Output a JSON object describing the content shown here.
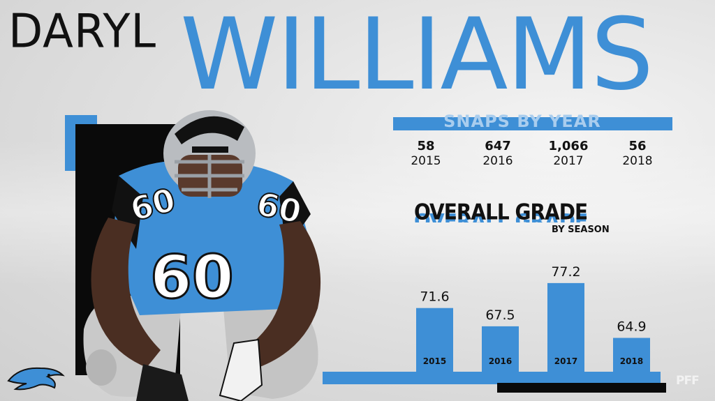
{
  "player": {
    "first_name": "DARYL",
    "last_name": "WILLIAMS",
    "jersey_number": "60"
  },
  "snaps": {
    "title": "SNAPS BY YEAR",
    "entries": [
      {
        "value": "58",
        "year": "2015"
      },
      {
        "value": "647",
        "year": "2016"
      },
      {
        "value": "1,066",
        "year": "2017"
      },
      {
        "value": "56",
        "year": "2018"
      }
    ]
  },
  "grade": {
    "title": "OVERALL GRADE",
    "subtitle": "BY SEASON"
  },
  "chart_data": {
    "type": "bar",
    "title": "OVERALL GRADE",
    "subtitle": "BY SEASON",
    "categories": [
      "2015",
      "2016",
      "2017",
      "2018"
    ],
    "values": [
      71.6,
      67.5,
      77.2,
      64.9
    ],
    "value_labels": [
      "71.6",
      "67.5",
      "77.2",
      "64.9"
    ],
    "ylim": [
      57,
      80
    ],
    "grid": false,
    "bar_color": "#3e8fd6",
    "shadow_color": "#0a0a0a"
  },
  "colors": {
    "accent": "#3e8fd6",
    "text": "#111111",
    "background": "#d9d9d9"
  },
  "branding": {
    "watermark": "PFF",
    "team_logo": "panthers-logo"
  }
}
